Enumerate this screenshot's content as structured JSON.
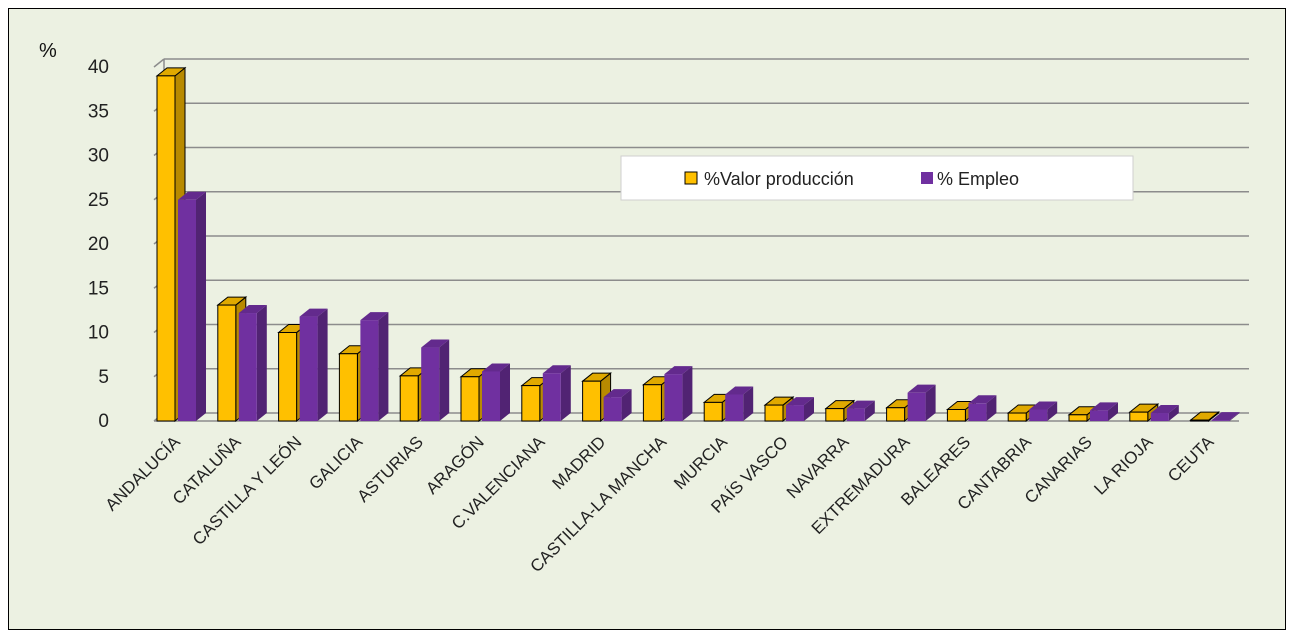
{
  "chart_data": {
    "type": "bar",
    "title": "",
    "ylabel": "%",
    "xlabel": "",
    "ylim": [
      0,
      40
    ],
    "yticks": [
      "0",
      "5",
      "10",
      "15",
      "20",
      "25",
      "30",
      "35",
      "40"
    ],
    "grid": true,
    "legend_position": "top-right",
    "categories": [
      "ANDALUCÍA",
      "CATALUÑA",
      "CASTILLA Y LEÓN",
      "GALICIA",
      "ASTURIAS",
      "ARAGÓN",
      "C.VALENCIANA",
      "MADRID",
      "CASTILLA-LA MANCHA",
      "MURCIA",
      "PAÍS VASCO",
      "NAVARRA",
      "EXTREMADURA",
      "BALEARES",
      "CANTABRIA",
      "CANARIAS",
      "LA RIOJA",
      "CEUTA"
    ],
    "series": [
      {
        "name": "%Valor producción",
        "color": "#ffc000",
        "values": [
          39.0,
          13.1,
          10.0,
          7.6,
          5.1,
          5.0,
          4.0,
          4.5,
          4.1,
          2.1,
          1.8,
          1.4,
          1.5,
          1.3,
          0.9,
          0.7,
          1.0,
          0.1
        ]
      },
      {
        "name": "% Empleo",
        "color": "#7030a0",
        "values": [
          25.0,
          12.2,
          11.8,
          11.4,
          8.3,
          5.6,
          5.4,
          2.7,
          5.3,
          3.0,
          1.8,
          1.4,
          3.2,
          2.0,
          1.3,
          1.2,
          0.9,
          0.1
        ]
      }
    ]
  },
  "colors": {
    "background": "#ecf1e2",
    "gridline": "#8c8c8c",
    "border": "#000000"
  }
}
